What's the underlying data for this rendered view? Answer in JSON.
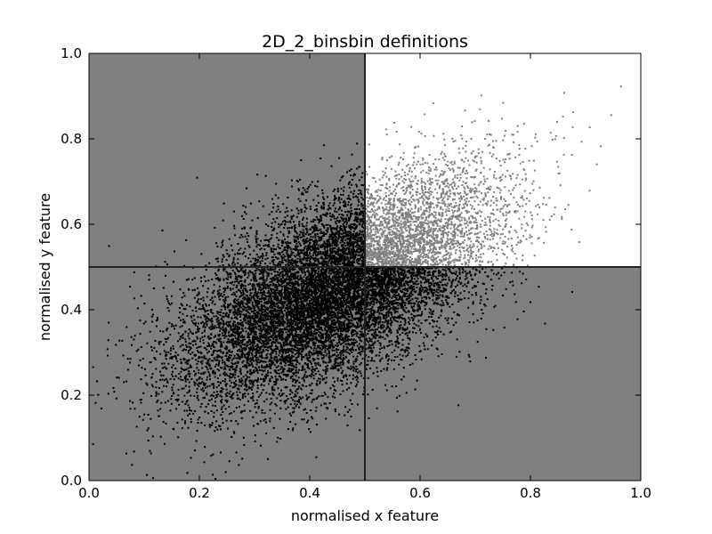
{
  "chart_data": {
    "type": "scatter",
    "title": "2D_2_binsbin definitions",
    "xlabel": "normalised x feature",
    "ylabel": "normalised y feature",
    "xlim": [
      0.0,
      1.0
    ],
    "ylim": [
      0.0,
      1.0
    ],
    "x_ticks": [
      "0.0",
      "0.2",
      "0.4",
      "0.6",
      "0.8",
      "1.0"
    ],
    "y_ticks": [
      "0.0",
      "0.2",
      "0.4",
      "0.6",
      "0.8",
      "1.0"
    ],
    "grid": false,
    "legend": "none",
    "bins": [
      {
        "x_range": [
          0.0,
          0.5
        ],
        "y_range": [
          0.0,
          0.5
        ],
        "fill": "#808080"
      },
      {
        "x_range": [
          0.0,
          0.5
        ],
        "y_range": [
          0.5,
          1.0
        ],
        "fill": "#808080"
      },
      {
        "x_range": [
          0.5,
          1.0
        ],
        "y_range": [
          0.0,
          0.5
        ],
        "fill": "#808080"
      },
      {
        "x_range": [
          0.5,
          1.0
        ],
        "y_range": [
          0.5,
          1.0
        ],
        "fill": "#ffffff"
      }
    ],
    "bin_edges": {
      "x": [
        0.5
      ],
      "y": [
        0.5
      ]
    },
    "scatter_points": {
      "distribution": "bivariate normal",
      "count": 13000,
      "mean": [
        0.45,
        0.45
      ],
      "std": [
        0.14,
        0.13
      ],
      "correlation": 0.6,
      "color_default": "#000000",
      "color_in_highlight_bin": "#808080"
    },
    "colors": {
      "bin_background": "#808080",
      "highlight_bin": "#ffffff",
      "points": "#000000",
      "points_highlight": "#808080",
      "edges": "#222222"
    }
  }
}
